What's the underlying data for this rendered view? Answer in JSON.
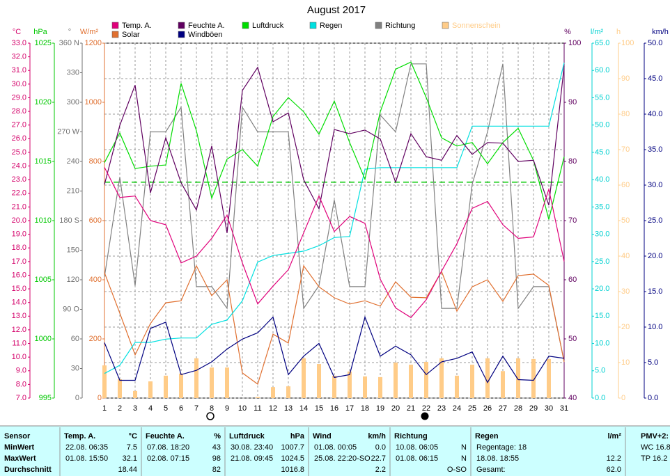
{
  "chart_data": {
    "type": "line",
    "title": "August 2017",
    "categories": [
      "1",
      "2",
      "3",
      "4",
      "5",
      "6",
      "7",
      "8",
      "9",
      "10",
      "11",
      "12",
      "13",
      "14",
      "15",
      "16",
      "17",
      "18",
      "19",
      "20",
      "21",
      "22",
      "23",
      "24",
      "25",
      "26",
      "27",
      "28",
      "29",
      "30",
      "31"
    ],
    "grid_axis": "sun",
    "grid": true,
    "axes": {
      "temp": {
        "unit": "°C",
        "color": "#d4006a",
        "lim": [
          7,
          33
        ],
        "ticks": [
          {
            "value": 7,
            "label": "7.0"
          },
          {
            "value": 8,
            "label": "8.0"
          },
          {
            "value": 9,
            "label": "9.0"
          },
          {
            "value": 10,
            "label": "10.0"
          },
          {
            "value": 11,
            "label": "11.0"
          },
          {
            "value": 12,
            "label": "12.0"
          },
          {
            "value": 13,
            "label": "13.0"
          },
          {
            "value": 14,
            "label": "14.0"
          },
          {
            "value": 15,
            "label": "15.0"
          },
          {
            "value": 16,
            "label": "16.0"
          },
          {
            "value": 17,
            "label": "17.0"
          },
          {
            "value": 18,
            "label": "18.0"
          },
          {
            "value": 19,
            "label": "19.0"
          },
          {
            "value": 20,
            "label": "20.0"
          },
          {
            "value": 21,
            "label": "21.0"
          },
          {
            "value": 22,
            "label": "22.0"
          },
          {
            "value": 23,
            "label": "23.0"
          },
          {
            "value": 24,
            "label": "24.0"
          },
          {
            "value": 25,
            "label": "25.0"
          },
          {
            "value": 26,
            "label": "26.0"
          },
          {
            "value": 27,
            "label": "27.0"
          },
          {
            "value": 28,
            "label": "28.0"
          },
          {
            "value": 29,
            "label": "29.0"
          },
          {
            "value": 30,
            "label": "30.0"
          },
          {
            "value": 31,
            "label": "31.0"
          },
          {
            "value": 32,
            "label": "32.0"
          },
          {
            "value": 33,
            "label": "33.0"
          }
        ]
      },
      "hpa": {
        "unit": "hPa",
        "color": "#00c800",
        "lim": [
          995,
          1025
        ],
        "ticks": [
          995,
          1000,
          1005,
          1010,
          1015,
          1020,
          1025
        ]
      },
      "dir": {
        "unit": "°",
        "color": "#707070",
        "lim": [
          0,
          360
        ],
        "ticks": [
          0,
          30,
          60,
          {
            "value": 90,
            "label": "90 O"
          },
          120,
          150,
          {
            "value": 180,
            "label": "180 S"
          },
          210,
          240,
          {
            "value": 270,
            "label": "270 W"
          },
          300,
          330,
          {
            "value": 360,
            "label": "360 N"
          }
        ]
      },
      "solar": {
        "unit": "W/m²",
        "color": "#e07030",
        "lim": [
          0,
          1200
        ],
        "ticks": [
          0,
          200,
          400,
          600,
          800,
          1000,
          1200
        ]
      },
      "hum": {
        "unit": "%",
        "color": "#600060",
        "lim": [
          40,
          100
        ],
        "ticks": [
          40,
          50,
          60,
          70,
          80,
          90,
          100
        ]
      },
      "rain": {
        "unit": "l/m²",
        "color": "#00d0d0",
        "lim": [
          0,
          65
        ],
        "ticks": [
          {
            "value": 0,
            "label": "0.0"
          },
          {
            "value": 5,
            "label": "5.0"
          },
          {
            "value": 10,
            "label": "10.0"
          },
          {
            "value": 15,
            "label": "15.0"
          },
          {
            "value": 20,
            "label": "20.0"
          },
          {
            "value": 25,
            "label": "25.0"
          },
          {
            "value": 30,
            "label": "30.0"
          },
          {
            "value": 35,
            "label": "35.0"
          },
          {
            "value": 40,
            "label": "40.0"
          },
          {
            "value": 45,
            "label": "45.0"
          },
          {
            "value": 50,
            "label": "50.0"
          },
          {
            "value": 55,
            "label": "55.0"
          },
          {
            "value": 60,
            "label": "60.0"
          },
          {
            "value": 65,
            "label": "65.0"
          }
        ]
      },
      "sun": {
        "unit": "h",
        "color": "#ffcc88",
        "lim": [
          0,
          100
        ],
        "ticks": [
          0,
          10,
          20,
          30,
          40,
          50,
          60,
          70,
          80,
          90,
          100
        ]
      },
      "wind": {
        "unit": "km/h",
        "color": "#000080",
        "lim": [
          0,
          50
        ],
        "ticks": [
          {
            "value": 0,
            "label": "0.0"
          },
          {
            "value": 5,
            "label": "5.0"
          },
          {
            "value": 10,
            "label": "10.0"
          },
          {
            "value": 15,
            "label": "15.0"
          },
          {
            "value": 20,
            "label": "20.0"
          },
          {
            "value": 25,
            "label": "25.0"
          },
          {
            "value": 30,
            "label": "30.0"
          },
          {
            "value": 35,
            "label": "35.0"
          },
          {
            "value": 40,
            "label": "40.0"
          },
          {
            "value": 45,
            "label": "45.0"
          },
          {
            "value": 50,
            "label": "50.0"
          }
        ]
      }
    },
    "reference_lines": [
      {
        "axis": "hpa",
        "value": 1013.25,
        "color": "#00c800"
      }
    ],
    "series": [
      {
        "name": "Temp. A.",
        "color": "#e0007a",
        "axis": "temp",
        "type": "line",
        "values": [
          23.9,
          21.7,
          21.8,
          20.0,
          19.7,
          16.9,
          17.4,
          18.7,
          20.4,
          16.9,
          13.9,
          15.2,
          16.4,
          19.1,
          21.8,
          19.2,
          20.3,
          19.8,
          15.7,
          13.6,
          12.9,
          14.2,
          16.3,
          18.3,
          20.9,
          21.4,
          19.7,
          18.7,
          18.8,
          22.3,
          17.0
        ]
      },
      {
        "name": "Solar",
        "color": "#e07030",
        "axis": "solar",
        "type": "line",
        "values": [
          424,
          287,
          146,
          252,
          322,
          329,
          447,
          346,
          400,
          85,
          47,
          216,
          186,
          447,
          376,
          339,
          318,
          329,
          311,
          393,
          341,
          339,
          428,
          294,
          376,
          400,
          327,
          414,
          419,
          381,
          122
        ]
      },
      {
        "name": "Feuchte A.",
        "color": "#600060",
        "axis": "hum",
        "type": "line",
        "values": [
          76.1,
          86.1,
          92.9,
          74.7,
          84,
          76.4,
          71.8,
          82.6,
          67.9,
          92,
          95.9,
          86.7,
          88.2,
          76.9,
          72,
          85.4,
          84.7,
          85.3,
          83.8,
          76.5,
          84.7,
          80.8,
          80.2,
          84.4,
          81.2,
          83.2,
          83.1,
          80,
          80.2,
          72.6,
          96.1
        ]
      },
      {
        "name": "Windböen",
        "color": "#000080",
        "axis": "wind",
        "type": "line",
        "values": [
          7.8,
          2.5,
          2.5,
          9.8,
          10.7,
          3.3,
          3.9,
          5.1,
          6.9,
          8.3,
          9.2,
          11.4,
          3.3,
          5.9,
          7.7,
          2.9,
          3.3,
          11.4,
          5.9,
          7.3,
          6.1,
          3.3,
          5.1,
          5.6,
          6.5,
          2.2,
          5.9,
          2.6,
          2.5,
          5.9,
          5.6
        ]
      },
      {
        "name": "Luftdruck",
        "color": "#00dd00",
        "axis": "hpa",
        "type": "line",
        "values": [
          1014.9,
          1017.4,
          1014.4,
          1014.6,
          1014.7,
          1021.6,
          1017.6,
          1011.9,
          1015.2,
          1016,
          1014.6,
          1018.8,
          1020.4,
          1019.2,
          1017.3,
          1020.1,
          1016.6,
          1013.5,
          1019.2,
          1022.8,
          1023.4,
          1020.4,
          1017,
          1016.3,
          1016.6,
          1014.8,
          1016.6,
          1017.8,
          1015.1,
          1010.1,
          1015.4
        ]
      },
      {
        "name": "Regen",
        "color": "#00e0e0",
        "axis": "rain",
        "type": "line",
        "values": [
          4.5,
          6,
          10.2,
          10.2,
          10.8,
          11,
          11,
          13.5,
          14.3,
          17.8,
          24.9,
          26.1,
          26.5,
          26.9,
          27.9,
          29.4,
          29.6,
          41.9,
          42.2,
          42.2,
          42.2,
          42.2,
          42.2,
          42.2,
          49.8,
          49.8,
          49.8,
          49.8,
          49.8,
          49.8,
          61.4
        ]
      },
      {
        "name": "Richtung",
        "color": "#808080",
        "axis": "dir",
        "type": "line",
        "values": [
          123,
          224,
          114,
          270,
          270,
          295,
          113,
          113,
          91,
          295,
          270,
          270,
          270,
          91,
          114,
          201,
          113,
          113,
          287,
          270,
          339,
          339,
          91,
          91,
          217,
          270,
          339,
          91,
          113,
          113,
          37
        ]
      },
      {
        "name": "Sonnenschein",
        "color": "#ffcc88",
        "axis": "sun",
        "type": "bar",
        "values": [
          9.2,
          5.3,
          2,
          4.7,
          6.3,
          6.9,
          11.2,
          8.6,
          8.6,
          0,
          0.3,
          3.1,
          3.3,
          11.2,
          9.6,
          6.3,
          7.5,
          6.1,
          5.9,
          10,
          9.4,
          10.2,
          11.2,
          6.3,
          9.4,
          11.2,
          7.6,
          11.2,
          11,
          11,
          0
        ]
      }
    ]
  },
  "table": {
    "header": "Sensor",
    "columns": [
      {
        "name": "Temp. A.",
        "unit": "°C"
      },
      {
        "name": "Feuchte A.",
        "unit": "%"
      },
      {
        "name": "Luftdruck",
        "unit": "hPa"
      },
      {
        "name": "Wind",
        "unit": "km/h"
      },
      {
        "name": "Richtung"
      },
      {
        "name": "Regen",
        "unit": "l/m²"
      },
      {
        "name": "PMV+2:"
      }
    ],
    "rows": [
      {
        "label": "MinWert",
        "cells": [
          {
            "time": "22.08.  06:35",
            "value": "7.5"
          },
          {
            "time": "07.08.  18:20",
            "value": "43"
          },
          {
            "time": "30.08.  23:40",
            "value": "1007.7"
          },
          {
            "time": "01.08.  00:05",
            "value": "0.0"
          },
          {
            "time": "10.08.  06:05",
            "value": "N"
          },
          {
            "time": "Regentage: 18"
          },
          {
            "time": "WC 16.8"
          }
        ]
      },
      {
        "label": "MaxWert",
        "cells": [
          {
            "time": "01.08.  15:50",
            "value": "32.1"
          },
          {
            "time": "02.08.  07:15",
            "value": "98"
          },
          {
            "time": "21.08.  09:45",
            "value": "1024.5"
          },
          {
            "time": "25.08.  22:20-SO",
            "value": "22.7"
          },
          {
            "time": "01.08.  06:15",
            "value": "N"
          },
          {
            "time": "18.08.  18:55",
            "value": "12.2"
          },
          {
            "time": "TP 16.2"
          }
        ]
      },
      {
        "label": "Durchschnitt",
        "cells": [
          {
            "value": "18.44"
          },
          {
            "value": "82"
          },
          {
            "value": "1016.8"
          },
          {
            "value": "2.2"
          },
          {
            "value": "O-SO"
          },
          {
            "time": "Gesamt:",
            "value": "62.0"
          },
          {}
        ]
      }
    ]
  }
}
